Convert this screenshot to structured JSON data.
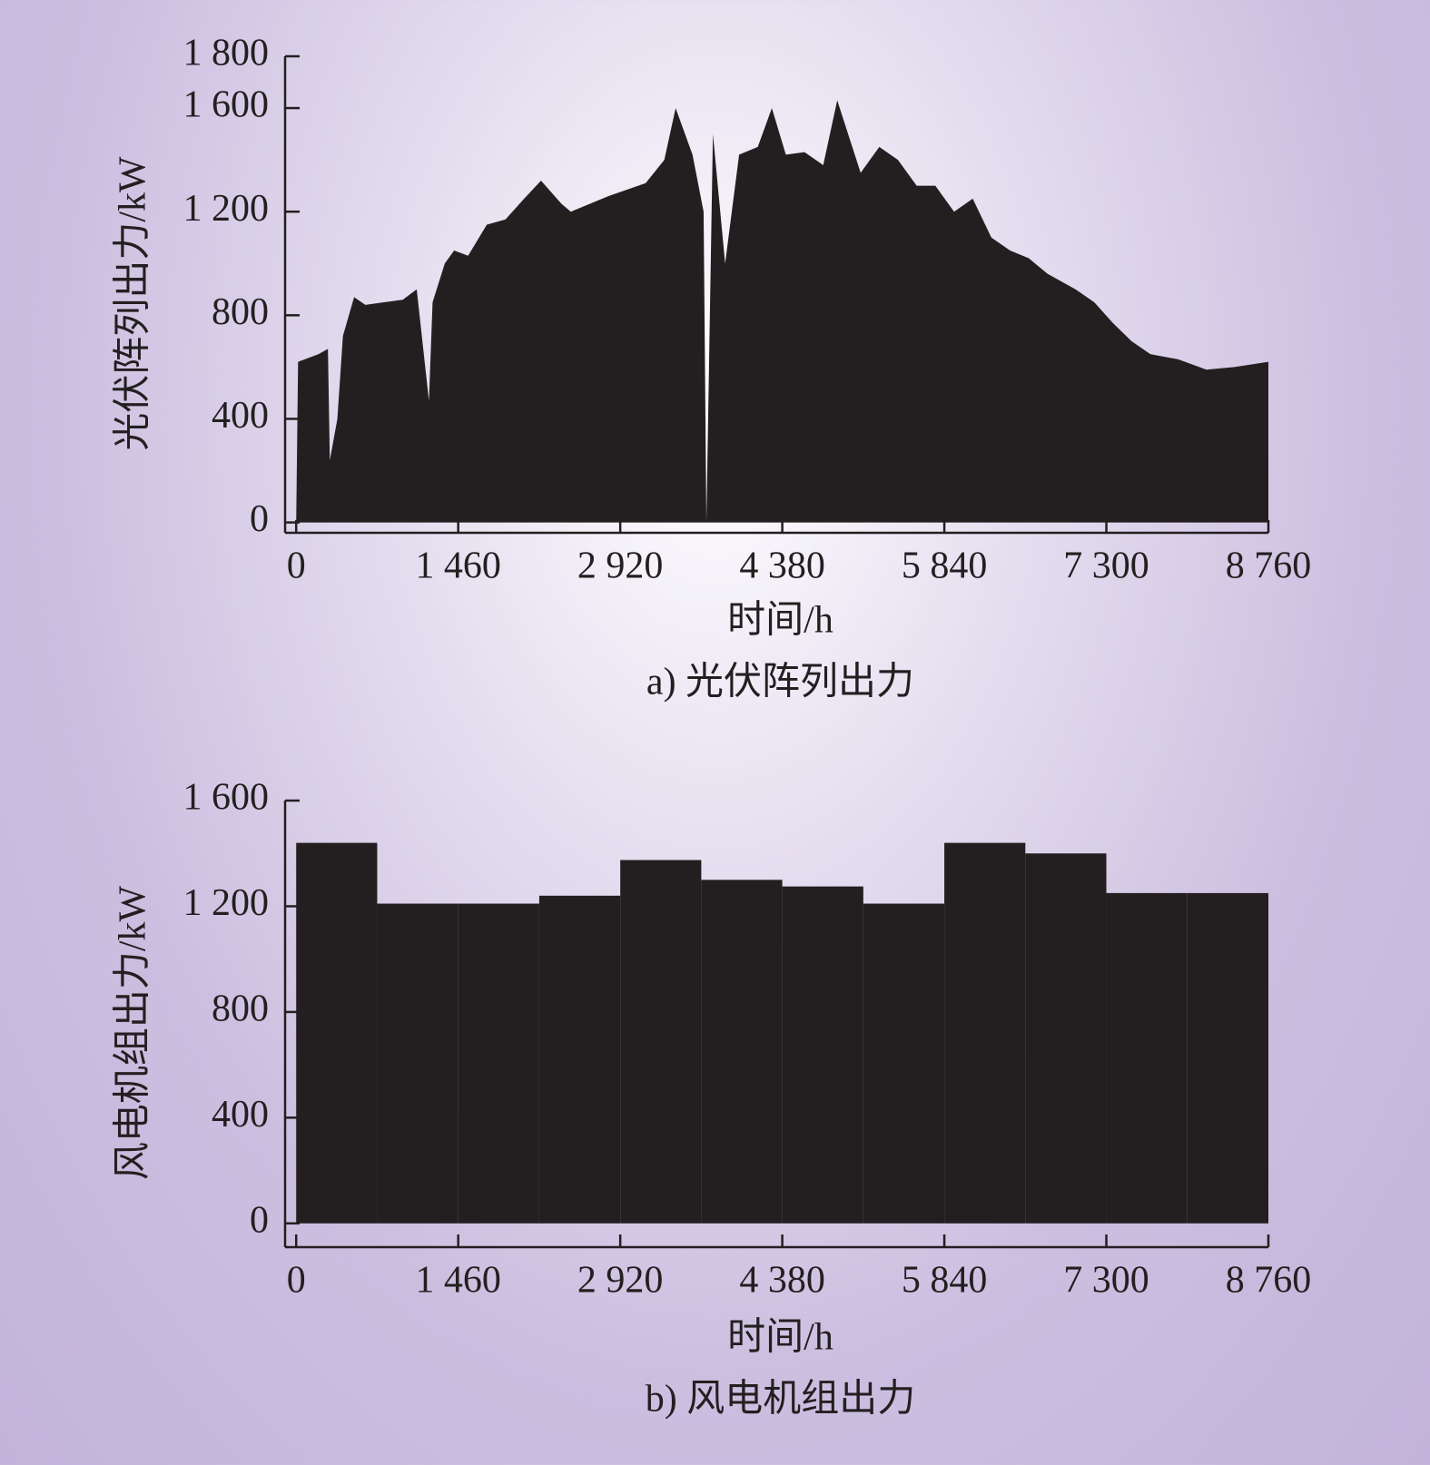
{
  "chart_data": [
    {
      "type": "area",
      "y_label": "光伏阵列出力/kW",
      "x_label": "时间/h",
      "caption": "a) 光伏阵列出力",
      "color": "#231f20",
      "x": [
        0,
        17,
        202,
        286,
        303,
        371,
        421,
        522,
        623,
        792,
        960,
        1086,
        1196,
        1229,
        1339,
        1423,
        1549,
        1718,
        1886,
        2054,
        2206,
        2391,
        2475,
        2812,
        3149,
        3317,
        3419,
        3571,
        3671,
        3696,
        3755,
        3865,
        3991,
        4159,
        4286,
        4412,
        4580,
        4749,
        4875,
        5086,
        5254,
        5422,
        5591,
        5759,
        5928,
        6096,
        6264,
        6433,
        6601,
        6770,
        7022,
        7191,
        7359,
        7527,
        7696,
        7948,
        8201,
        8454,
        8760
      ],
      "values": [
        0,
        620,
        650,
        670,
        240,
        400,
        720,
        870,
        840,
        850,
        860,
        900,
        470,
        850,
        1000,
        1050,
        1030,
        1150,
        1170,
        1250,
        1320,
        1230,
        1200,
        1260,
        1310,
        1400,
        1600,
        1420,
        1200,
        0,
        1500,
        1000,
        1420,
        1450,
        1600,
        1420,
        1430,
        1380,
        1630,
        1350,
        1450,
        1400,
        1300,
        1300,
        1200,
        1250,
        1100,
        1050,
        1020,
        960,
        900,
        850,
        770,
        700,
        650,
        630,
        590,
        600,
        620
      ],
      "xlim": [
        -100,
        8760
      ],
      "ylim": [
        -40,
        1800
      ],
      "xticks": [
        0,
        {
          "value": 1460,
          "label": "1 460"
        },
        {
          "value": 2920,
          "label": "2 920"
        },
        {
          "value": 4380,
          "label": "4 380"
        },
        {
          "value": 5840,
          "label": "5 840"
        },
        {
          "value": 7300,
          "label": "7 300"
        },
        {
          "value": 8760,
          "label": "8 760"
        }
      ],
      "yticks": [
        0,
        400,
        800,
        {
          "value": 1200,
          "label": "1 200"
        },
        {
          "value": 1600,
          "label": "1 600"
        },
        {
          "value": 1800,
          "label": "1 800"
        }
      ]
    },
    {
      "type": "histogram",
      "y_label": "风电机组出力/kW",
      "x_label": "时间/h",
      "caption": "b) 风电机组出力",
      "color": "#231f20",
      "bins": [
        0,
        730,
        1460,
        2190,
        2920,
        3650,
        4380,
        5110,
        5840,
        6570,
        7300,
        8030,
        8760
      ],
      "values": [
        1440,
        1210,
        1210,
        1240,
        1375,
        1300,
        1275,
        1210,
        1440,
        1400,
        1250,
        1250
      ],
      "xlim": [
        -100,
        8760
      ],
      "ylim": [
        -90,
        1600
      ],
      "xticks": [
        0,
        {
          "value": 1460,
          "label": "1 460"
        },
        {
          "value": 2920,
          "label": "2 920"
        },
        {
          "value": 4380,
          "label": "4 380"
        },
        {
          "value": 5840,
          "label": "5 840"
        },
        {
          "value": 7300,
          "label": "7 300"
        },
        {
          "value": 8760,
          "label": "8 760"
        }
      ],
      "yticks": [
        0,
        400,
        800,
        {
          "value": 1200,
          "label": "1 200"
        },
        {
          "value": 1600,
          "label": "1 600"
        }
      ]
    }
  ]
}
